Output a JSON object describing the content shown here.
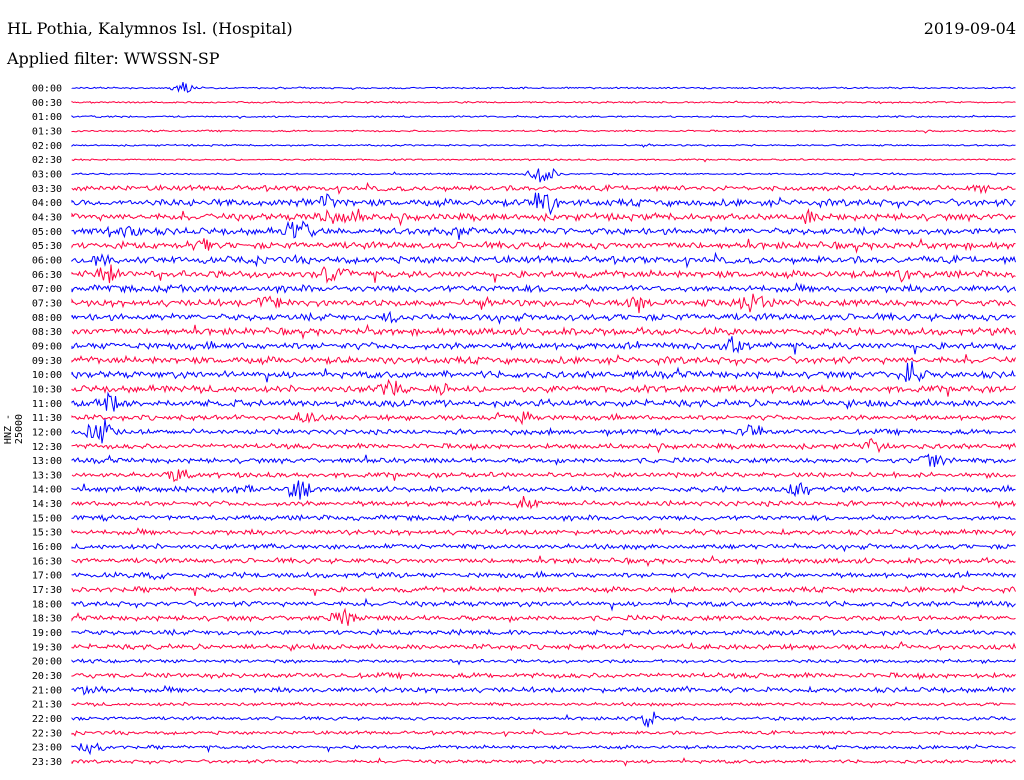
{
  "header": {
    "station": "HL Pothia, Kalymnos Isl. (Hospital)",
    "date": "2019-09-04",
    "filter": "Applied filter: WWSSN-SP"
  },
  "axis": {
    "ylabel": "HNZ - 25000"
  },
  "colors": {
    "trace_a": "#0000ff",
    "trace_b": "#ff0040"
  },
  "chart_data": {
    "type": "line",
    "title": "HL Pothia, Kalymnos Isl. (Hospital)",
    "subtitle": "Applied filter: WWSSN-SP",
    "ylabel": "HNZ - 25000",
    "grid": false,
    "rows": [
      "00:00",
      "00:30",
      "01:00",
      "01:30",
      "02:00",
      "02:30",
      "03:00",
      "03:30",
      "04:00",
      "04:30",
      "05:00",
      "05:30",
      "06:00",
      "06:30",
      "07:00",
      "07:30",
      "08:00",
      "08:30",
      "09:00",
      "09:30",
      "10:00",
      "10:30",
      "11:00",
      "11:30",
      "12:00",
      "12:30",
      "13:00",
      "13:30",
      "14:00",
      "14:30",
      "15:00",
      "15:30",
      "16:00",
      "16:30",
      "17:00",
      "17:30",
      "18:00",
      "18:30",
      "19:00",
      "19:30",
      "20:00",
      "20:30",
      "21:00",
      "21:30",
      "22:00",
      "22:30",
      "23:00",
      "23:30"
    ],
    "noise": [
      1,
      1,
      1,
      1,
      1,
      1,
      1,
      3,
      4,
      4,
      4,
      4,
      4,
      4,
      4,
      4,
      4,
      4,
      4,
      4,
      4,
      4,
      4,
      3,
      3,
      3,
      3,
      3,
      3,
      3,
      3,
      3,
      3,
      3,
      3,
      3,
      3,
      3,
      3,
      3,
      2,
      3,
      3,
      2,
      2,
      2,
      2,
      2
    ],
    "events": [
      {
        "row": "00:00",
        "at": 0.12,
        "amp": 8
      },
      {
        "row": "00:30",
        "at": 0.74,
        "amp": 2
      },
      {
        "row": "03:00",
        "at": 0.5,
        "amp": 14
      },
      {
        "row": "03:30",
        "at": 0.96,
        "amp": 8
      },
      {
        "row": "04:00",
        "at": 0.5,
        "amp": 20
      },
      {
        "row": "04:00",
        "at": 0.27,
        "amp": 10
      },
      {
        "row": "04:30",
        "at": 0.27,
        "amp": 12
      },
      {
        "row": "04:30",
        "at": 0.3,
        "amp": 12
      },
      {
        "row": "04:30",
        "at": 0.78,
        "amp": 8
      },
      {
        "row": "05:00",
        "at": 0.24,
        "amp": 18
      },
      {
        "row": "05:00",
        "at": 0.41,
        "amp": 12
      },
      {
        "row": "05:00",
        "at": 0.06,
        "amp": 9
      },
      {
        "row": "05:30",
        "at": 0.14,
        "amp": 10
      },
      {
        "row": "06:00",
        "at": 0.03,
        "amp": 10
      },
      {
        "row": "06:30",
        "at": 0.04,
        "amp": 14
      },
      {
        "row": "06:30",
        "at": 0.28,
        "amp": 18
      },
      {
        "row": "06:30",
        "at": 0.88,
        "amp": 10
      },
      {
        "row": "07:30",
        "at": 0.21,
        "amp": 12
      },
      {
        "row": "07:30",
        "at": 0.6,
        "amp": 12
      },
      {
        "row": "07:30",
        "at": 0.72,
        "amp": 16
      },
      {
        "row": "08:00",
        "at": 0.34,
        "amp": 10
      },
      {
        "row": "09:00",
        "at": 0.7,
        "amp": 12
      },
      {
        "row": "10:00",
        "at": 0.89,
        "amp": 16
      },
      {
        "row": "10:30",
        "at": 0.34,
        "amp": 16
      },
      {
        "row": "10:30",
        "at": 0.39,
        "amp": 10
      },
      {
        "row": "11:00",
        "at": 0.04,
        "amp": 12
      },
      {
        "row": "11:30",
        "at": 0.25,
        "amp": 10
      },
      {
        "row": "11:30",
        "at": 0.48,
        "amp": 8
      },
      {
        "row": "12:00",
        "at": 0.03,
        "amp": 18
      },
      {
        "row": "12:00",
        "at": 0.72,
        "amp": 12
      },
      {
        "row": "12:30",
        "at": 0.85,
        "amp": 10
      },
      {
        "row": "13:00",
        "at": 0.91,
        "amp": 12
      },
      {
        "row": "13:30",
        "at": 0.11,
        "amp": 10
      },
      {
        "row": "14:00",
        "at": 0.24,
        "amp": 14
      },
      {
        "row": "14:00",
        "at": 0.77,
        "amp": 12
      },
      {
        "row": "14:00",
        "at": 0.18,
        "amp": 8
      },
      {
        "row": "14:30",
        "at": 0.48,
        "amp": 10
      },
      {
        "row": "17:00",
        "at": 0.09,
        "amp": 8
      },
      {
        "row": "18:30",
        "at": 0.29,
        "amp": 14
      },
      {
        "row": "21:00",
        "at": 0.02,
        "amp": 8
      },
      {
        "row": "22:00",
        "at": 0.61,
        "amp": 10
      },
      {
        "row": "23:00",
        "at": 0.02,
        "amp": 10
      }
    ]
  }
}
